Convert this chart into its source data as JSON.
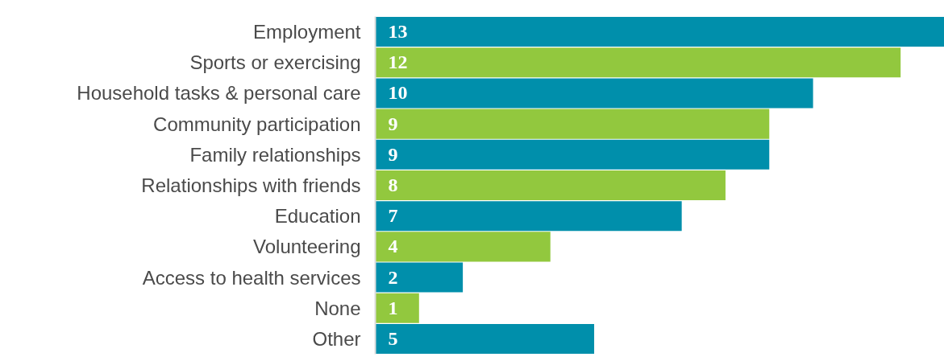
{
  "chart_data": {
    "type": "bar",
    "orientation": "horizontal",
    "categories": [
      "Employment",
      "Sports or exercising",
      "Household tasks & personal care",
      "Community participation",
      "Family relationships",
      "Relationships with friends",
      "Education",
      "Volunteering",
      "Access to health services",
      "None",
      "Other"
    ],
    "values": [
      13,
      12,
      10,
      9,
      9,
      8,
      7,
      4,
      2,
      1,
      5
    ],
    "colors": [
      "#008fab",
      "#92c83e",
      "#008fab",
      "#92c83e",
      "#008fab",
      "#92c83e",
      "#008fab",
      "#92c83e",
      "#008fab",
      "#92c83e",
      "#008fab"
    ],
    "xlim": [
      0,
      13
    ],
    "data_labels": true,
    "tick_labels": "y"
  }
}
